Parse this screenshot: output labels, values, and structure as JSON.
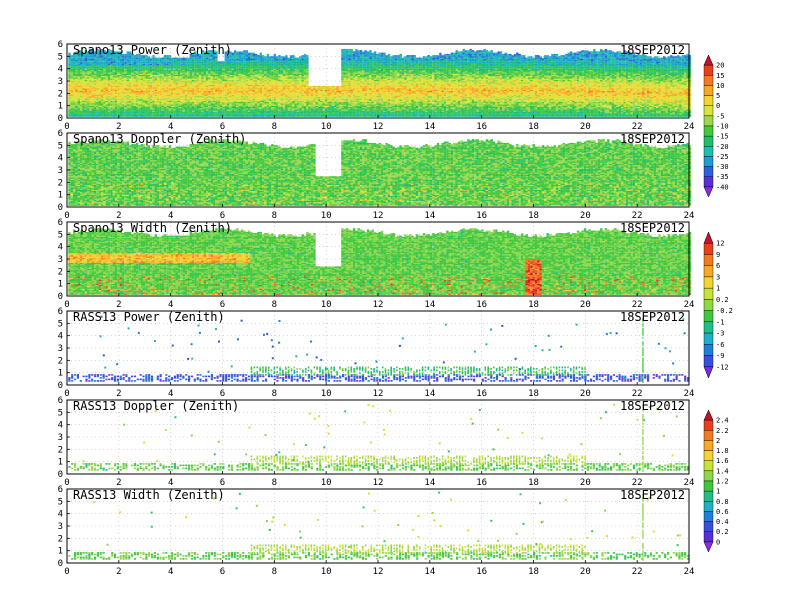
{
  "chart_data": [
    {
      "type": "heatmap",
      "title": "Spano13 Power (Zenith)",
      "date": "18SEP2012",
      "x_ticks": [
        "0",
        "2",
        "4",
        "6",
        "8",
        "10",
        "12",
        "14",
        "16",
        "18",
        "20",
        "22",
        "24"
      ],
      "y_ticks": [
        "0",
        "1",
        "2",
        "3",
        "4",
        "5",
        "6"
      ],
      "xlim": [
        0,
        24
      ],
      "ylim": [
        0,
        6
      ],
      "colorbar": "cb1",
      "profile": {
        "kind": "power",
        "layer_center": 2.2,
        "top_km": 5.2
      },
      "gaps": [
        [
          4.0,
          4.7,
          4.8
        ],
        [
          5.8,
          6.0,
          4.6
        ],
        [
          9.3,
          10.5,
          2.6
        ]
      ],
      "color_scale": [
        -40,
        20
      ]
    },
    {
      "type": "heatmap",
      "title": "Spano13 Doppler (Zenith)",
      "date": "18SEP2012",
      "x_ticks": [
        "0",
        "2",
        "4",
        "6",
        "8",
        "10",
        "12",
        "14",
        "16",
        "18",
        "20",
        "22",
        "24"
      ],
      "y_ticks": [
        "0",
        "1",
        "2",
        "3",
        "4",
        "5",
        "6"
      ],
      "xlim": [
        0,
        24
      ],
      "ylim": [
        0,
        6
      ],
      "colorbar": "cb1",
      "profile": {
        "kind": "doppler",
        "top_km": 5.1
      },
      "gaps": [
        [
          4.0,
          4.7,
          4.8
        ],
        [
          9.5,
          10.5,
          2.5
        ]
      ],
      "color_scale": [
        -40,
        20
      ]
    },
    {
      "type": "heatmap",
      "title": "Spano13 Width (Zenith)",
      "date": "18SEP2012",
      "x_ticks": [
        "0",
        "2",
        "4",
        "6",
        "8",
        "10",
        "12",
        "14",
        "16",
        "18",
        "20",
        "22",
        "24"
      ],
      "y_ticks": [
        "0",
        "1",
        "2",
        "3",
        "4",
        "5",
        "6"
      ],
      "xlim": [
        0,
        24
      ],
      "ylim": [
        0,
        6
      ],
      "colorbar": "cb2",
      "profile": {
        "kind": "width",
        "top_km": 5.1
      },
      "gaps": [
        [
          4.0,
          4.7,
          4.8
        ],
        [
          9.5,
          10.5,
          2.4
        ]
      ],
      "color_scale": [
        -12,
        12
      ]
    },
    {
      "type": "heatmap",
      "title": "RASS13 Power (Zenith)",
      "date": "18SEP2012",
      "x_ticks": [
        "0",
        "2",
        "4",
        "6",
        "8",
        "10",
        "12",
        "14",
        "16",
        "18",
        "20",
        "22",
        "24"
      ],
      "y_ticks": [
        "0",
        "1",
        "2",
        "3",
        "4",
        "5",
        "6"
      ],
      "xlim": [
        0,
        24
      ],
      "ylim": [
        0,
        6
      ],
      "colorbar": "cb2",
      "profile": {
        "kind": "rass_power",
        "band_start": 7.0,
        "band_end": 20.0,
        "band_top": 1.6
      },
      "color_scale": [
        -12,
        12
      ]
    },
    {
      "type": "heatmap",
      "title": "RASS13 Doppler (Zenith)",
      "date": "18SEP2012",
      "x_ticks": [
        "0",
        "2",
        "4",
        "6",
        "8",
        "10",
        "12",
        "14",
        "16",
        "18",
        "20",
        "22",
        "24"
      ],
      "y_ticks": [
        "0",
        "1",
        "2",
        "3",
        "4",
        "5",
        "6"
      ],
      "xlim": [
        0,
        24
      ],
      "ylim": [
        0,
        6
      ],
      "colorbar": "cb3",
      "profile": {
        "kind": "rass_doppler",
        "band_start": 7.0,
        "band_end": 20.0,
        "band_top": 1.6
      },
      "color_scale": [
        0,
        2.4
      ]
    },
    {
      "type": "heatmap",
      "title": "RASS13 Width (Zenith)",
      "date": "18SEP2012",
      "x_ticks": [
        "0",
        "2",
        "4",
        "6",
        "8",
        "10",
        "12",
        "14",
        "16",
        "18",
        "20",
        "22",
        "24"
      ],
      "y_ticks": [
        "0",
        "1",
        "2",
        "3",
        "4",
        "5",
        "6"
      ],
      "xlim": [
        0,
        24
      ],
      "ylim": [
        0,
        6
      ],
      "colorbar": "cb3",
      "profile": {
        "kind": "rass_width",
        "band_start": 7.0,
        "band_end": 20.0,
        "band_top": 1.6
      },
      "color_scale": [
        0,
        2.4
      ]
    }
  ],
  "colorbars": {
    "cb1": {
      "labels": [
        "20",
        "15",
        "10",
        "5",
        "0",
        "-5",
        "-10",
        "-15",
        "-20",
        "-25",
        "-30",
        "-35",
        "-40"
      ],
      "colors": [
        "#c8102e",
        "#e8401c",
        "#f47a20",
        "#f9a825",
        "#f2d433",
        "#d7e63a",
        "#9bd84a",
        "#44c93d",
        "#1fbf6a",
        "#1fbfb0",
        "#1f9bd6",
        "#2f5fe0",
        "#5a2fd6",
        "#8a2be2"
      ]
    },
    "cb2": {
      "labels": [
        "12",
        "9",
        "6",
        "3",
        "1",
        "0.2",
        "-0.2",
        "-1",
        "-3",
        "-6",
        "-9",
        "-12"
      ],
      "colors": [
        "#c8102e",
        "#e8401c",
        "#f47a20",
        "#f9a825",
        "#f2d433",
        "#c9e23a",
        "#8fd64b",
        "#3fc83f",
        "#1fbf8a",
        "#1fb0c8",
        "#1f80d8",
        "#3a4fe0",
        "#7a2be2"
      ]
    },
    "cb3": {
      "labels": [
        "2.4",
        "2.2",
        "2",
        "1.8",
        "1.6",
        "1.4",
        "1.2",
        "1",
        "0.8",
        "0.6",
        "0.4",
        "0.2",
        "0"
      ],
      "colors": [
        "#c8102e",
        "#e8401c",
        "#f47a20",
        "#f9a825",
        "#f2d433",
        "#c9e23a",
        "#8fd64b",
        "#3fc83f",
        "#1fbf8a",
        "#1fb0c8",
        "#1f80d8",
        "#3a4fe0",
        "#5a2fd6",
        "#8a2be2"
      ]
    }
  }
}
